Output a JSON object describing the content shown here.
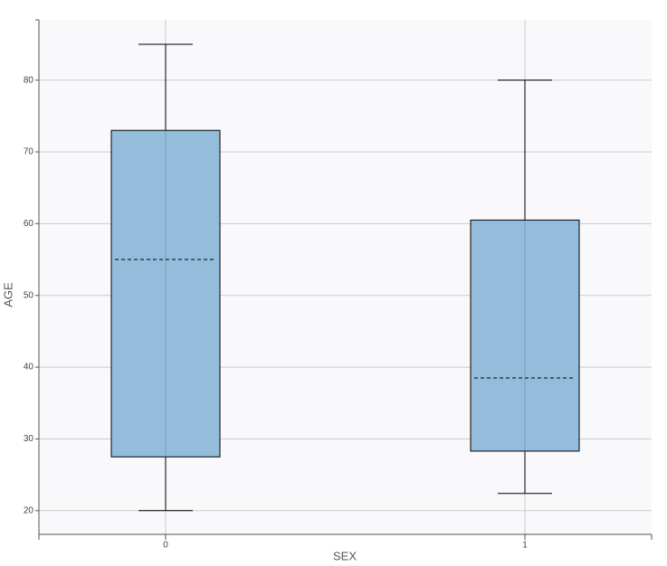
{
  "chart_data": {
    "type": "box",
    "x_label": "SEX",
    "y_label": "AGE",
    "categories": [
      "0",
      "1"
    ],
    "boxes": [
      {
        "min": 20,
        "q1": 27.5,
        "median": 55,
        "q3": 73,
        "max": 85
      },
      {
        "min": 22.4,
        "q1": 28.3,
        "median": 38.5,
        "q3": 60.5,
        "max": 80
      }
    ],
    "color": "#8db9d9",
    "ylim": [
      16.7,
      88.4
    ],
    "yticks": [
      20,
      30,
      40,
      50,
      60,
      70,
      80
    ],
    "grid": true
  }
}
